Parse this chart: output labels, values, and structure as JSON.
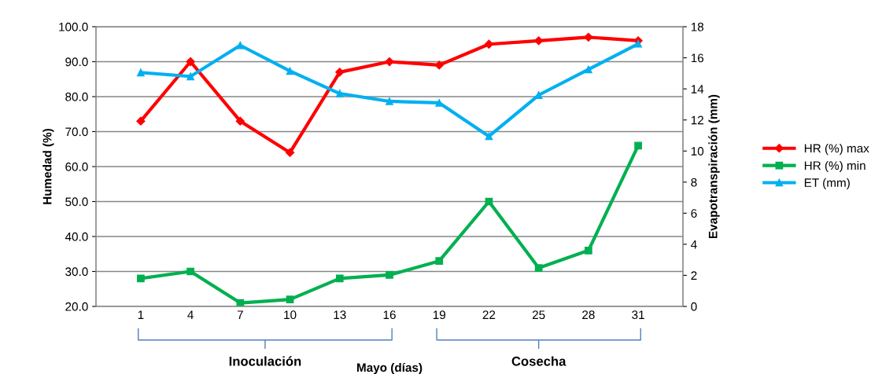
{
  "chart_data": {
    "type": "line",
    "xlabel": "Mayo (días)",
    "ylabel": "Humedad (%)",
    "y2label": "Evapotranspiración (mm)",
    "categories": [
      "1",
      "4",
      "7",
      "10",
      "13",
      "16",
      "19",
      "22",
      "25",
      "28",
      "31"
    ],
    "series": [
      {
        "name": "HR (%) max",
        "color": "#ff0000",
        "marker": "diamond",
        "values": [
          73,
          90,
          73,
          64,
          87,
          90,
          89,
          95,
          96,
          97,
          96
        ]
      },
      {
        "name": "HR (%) min",
        "color": "#00b050",
        "marker": "square",
        "values": [
          28,
          30,
          21,
          22,
          28,
          29,
          33,
          50,
          31,
          36,
          66
        ]
      },
      {
        "name": "ET (mm)",
        "color": "#00b0f0",
        "marker": "triangle",
        "axis": "y2",
        "values": [
          15.05,
          14.8,
          16.8,
          15.15,
          13.7,
          13.2,
          13.1,
          10.95,
          13.6,
          15.25,
          16.9
        ]
      }
    ],
    "ylim": [
      20,
      100
    ],
    "yticks": [
      {
        "value": 20,
        "label": "20.0"
      },
      {
        "value": 30,
        "label": "30.0"
      },
      {
        "value": 40,
        "label": "40.0"
      },
      {
        "value": 50,
        "label": "50.0"
      },
      {
        "value": 60,
        "label": "60.0"
      },
      {
        "value": 70,
        "label": "70.0"
      },
      {
        "value": 80,
        "label": "80.0"
      },
      {
        "value": 90,
        "label": "90.0"
      },
      {
        "value": 100,
        "label": "100.0"
      }
    ],
    "y2lim": [
      0,
      18
    ],
    "y2ticks": [
      0,
      2,
      4,
      6,
      8,
      10,
      12,
      14,
      16,
      18
    ],
    "grid": "y",
    "legend": "right",
    "line_style": "solid",
    "annotations": [
      "Inoculación",
      "Cosecha"
    ]
  }
}
